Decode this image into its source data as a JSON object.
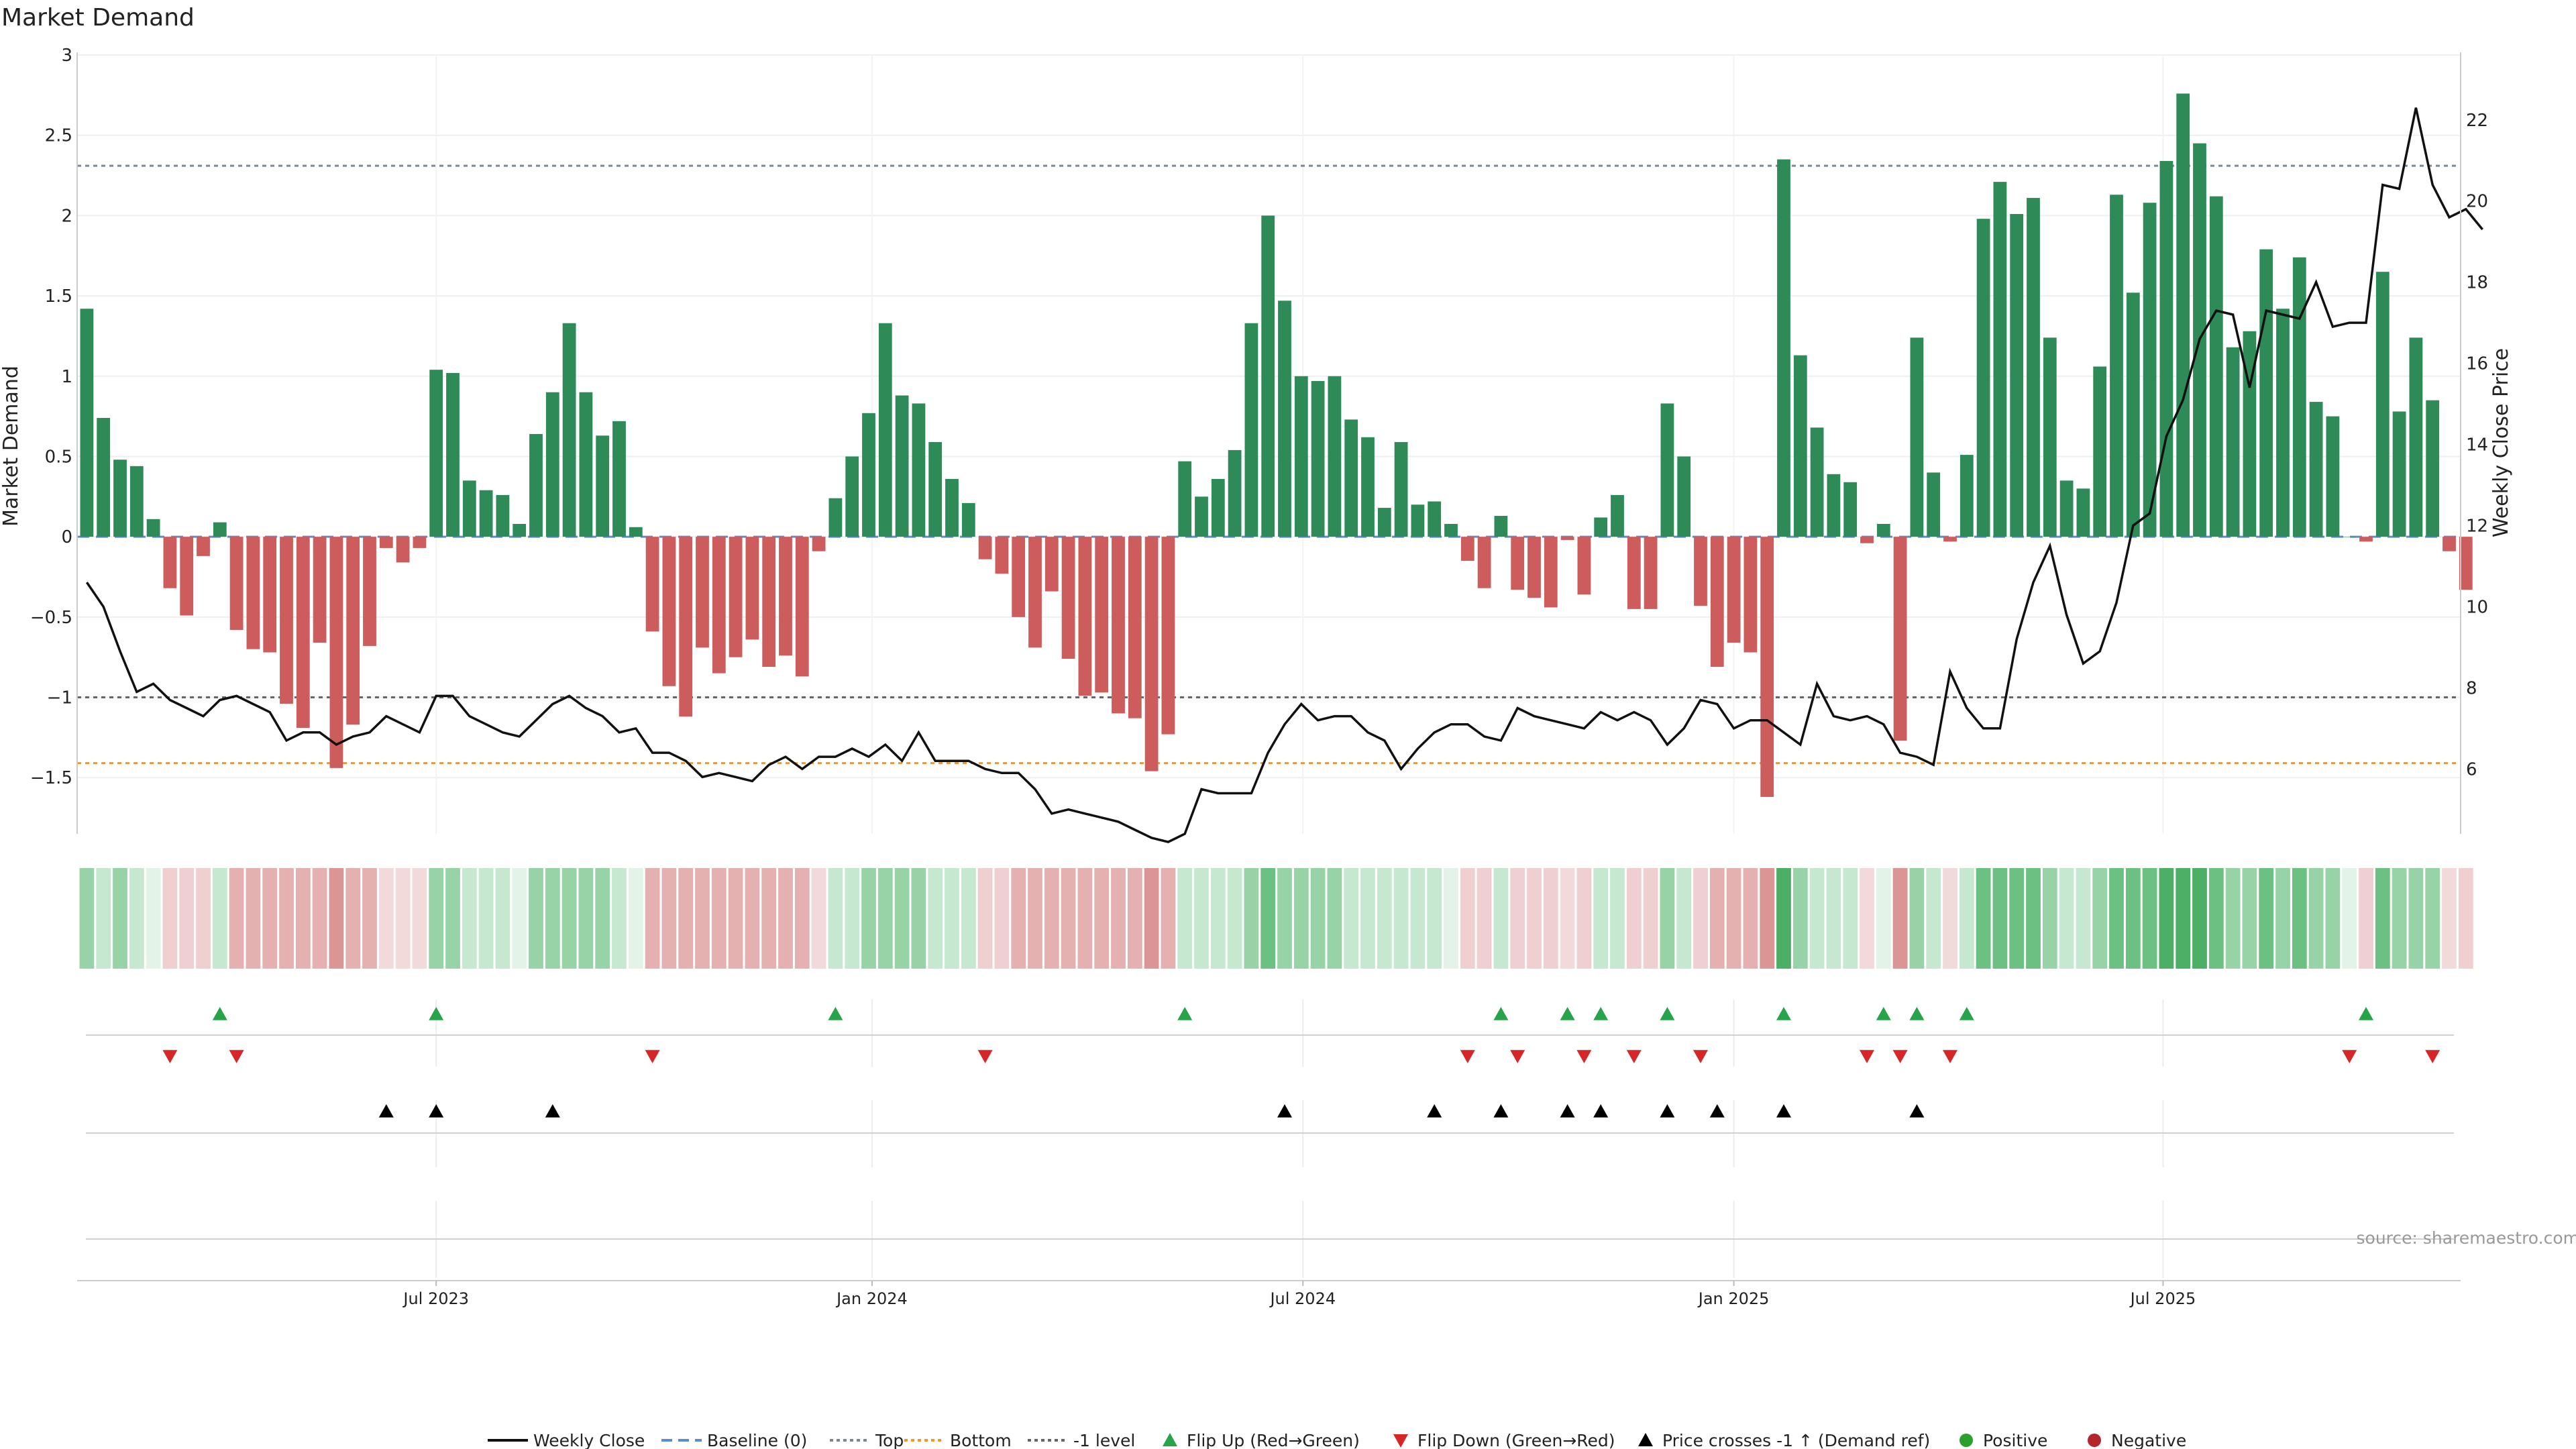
{
  "chart_data": {
    "type": "bar",
    "title": "Market Demand",
    "ylabel_left": "Market Demand",
    "ylabel_right": "Weekly Close Price",
    "ylim_left": [
      -1.85,
      3.0
    ],
    "ylim_right": [
      4.4,
      23.6
    ],
    "yticks_left": [
      "3",
      "2.5",
      "2",
      "1.5",
      "1",
      "0.5",
      "0",
      "−0.5",
      "−1",
      "−1.5"
    ],
    "yticks_left_values": [
      3,
      2.5,
      2,
      1.5,
      1,
      0.5,
      0,
      -0.5,
      -1,
      -1.5
    ],
    "yticks_right": [
      "22",
      "20",
      "18",
      "16",
      "14",
      "12",
      "10",
      "8",
      "6"
    ],
    "yticks_right_values": [
      22,
      20,
      18,
      16,
      14,
      12,
      10,
      8,
      6
    ],
    "xtick_labels": [
      "Jul 2023",
      "Jan 2024",
      "Jul 2024",
      "Jan 2025",
      "Jul 2025"
    ],
    "xtick_weeks": [
      21.5,
      47.7,
      73.6,
      99.5,
      125.3
    ],
    "n_weeks": 144,
    "reference_lines": {
      "top": 2.31,
      "bottom": -1.41,
      "minus_one": -1.0
    },
    "demand_values": [
      1.42,
      0.74,
      0.48,
      0.44,
      0.11,
      -0.32,
      -0.49,
      -0.12,
      0.09,
      -0.58,
      -0.7,
      -0.72,
      -1.04,
      -1.19,
      -0.66,
      -1.44,
      -1.17,
      -0.68,
      -0.07,
      -0.16,
      -0.07,
      1.04,
      1.02,
      0.35,
      0.29,
      0.26,
      0.08,
      0.64,
      0.9,
      1.33,
      0.9,
      0.63,
      0.72,
      0.06,
      -0.59,
      -0.93,
      -1.12,
      -0.69,
      -0.85,
      -0.75,
      -0.64,
      -0.81,
      -0.74,
      -0.87,
      -0.09,
      0.24,
      0.5,
      0.77,
      1.33,
      0.88,
      0.83,
      0.59,
      0.36,
      0.21,
      -0.14,
      -0.23,
      -0.5,
      -0.69,
      -0.34,
      -0.76,
      -0.99,
      -0.97,
      -1.1,
      -1.13,
      -1.46,
      -1.23,
      0.47,
      0.25,
      0.36,
      0.54,
      1.33,
      2.0,
      1.47,
      1.0,
      0.97,
      1.0,
      0.73,
      0.62,
      0.18,
      0.59,
      0.2,
      0.22,
      0.08,
      -0.15,
      -0.32,
      0.13,
      -0.33,
      -0.38,
      -0.44,
      -0.02,
      -0.36,
      0.12,
      0.26,
      -0.45,
      -0.45,
      0.83,
      0.5,
      -0.43,
      -0.81,
      -0.66,
      -0.72,
      -1.62,
      2.35,
      1.13,
      0.68,
      0.39,
      0.34,
      -0.04,
      0.08,
      -1.27,
      1.24,
      0.4,
      -0.03,
      0.51,
      1.98,
      2.21,
      2.01,
      2.11,
      1.24,
      0.35,
      0.3,
      1.06,
      2.13,
      1.52,
      2.08,
      2.34,
      2.76,
      2.45,
      2.12,
      1.18,
      1.28,
      1.79,
      1.42,
      1.74,
      0.84,
      0.75,
      0.0,
      -0.03,
      1.65,
      0.78,
      1.24,
      0.85,
      -0.09,
      -0.33
    ],
    "weekly_close": [
      10.6,
      10.0,
      8.9,
      7.9,
      8.1,
      7.7,
      7.5,
      7.3,
      7.7,
      7.8,
      7.6,
      7.4,
      6.7,
      6.9,
      6.9,
      6.6,
      6.8,
      6.9,
      7.3,
      7.1,
      6.9,
      7.8,
      7.8,
      7.3,
      7.1,
      6.9,
      6.8,
      7.2,
      7.6,
      7.8,
      7.5,
      7.3,
      6.9,
      7.0,
      6.4,
      6.4,
      6.2,
      5.8,
      5.9,
      5.8,
      5.7,
      6.1,
      6.3,
      6.0,
      6.3,
      6.3,
      6.5,
      6.3,
      6.6,
      6.2,
      6.9,
      6.2,
      6.2,
      6.2,
      6.0,
      5.9,
      5.9,
      5.5,
      4.9,
      5.0,
      4.9,
      4.8,
      4.7,
      4.5,
      4.3,
      4.2,
      4.4,
      5.5,
      5.4,
      5.4,
      5.4,
      6.4,
      7.1,
      7.6,
      7.2,
      7.3,
      7.3,
      6.9,
      6.7,
      6.0,
      6.5,
      6.9,
      7.1,
      7.1,
      6.8,
      6.7,
      7.5,
      7.3,
      7.2,
      7.1,
      7.0,
      7.4,
      7.2,
      7.4,
      7.2,
      6.6,
      7.0,
      7.7,
      7.6,
      7.0,
      7.2,
      7.2,
      6.9,
      6.6,
      8.1,
      7.3,
      7.2,
      7.3,
      7.1,
      6.4,
      6.3,
      6.1,
      8.4,
      7.5,
      7.0,
      7.0,
      9.2,
      10.6,
      11.5,
      9.8,
      8.6,
      8.9,
      10.1,
      12.0,
      12.3,
      14.2,
      15.1,
      16.6,
      17.3,
      17.2,
      15.4,
      17.3,
      17.2,
      17.1,
      18.0,
      16.9,
      17.0,
      17.0,
      20.4,
      20.3,
      22.3,
      20.4,
      19.6,
      19.8,
      19.3
    ],
    "heat_colors": [
      "#98d3a7",
      "#c7e8d0",
      "#98d3a7",
      "#c7e8d0",
      "#e4f3e8",
      "#efcfcf",
      "#efcfcf",
      "#efcfcf",
      "#c7e8d0",
      "#e4b0b0",
      "#e4b0b0",
      "#e4b0b0",
      "#e4b0b0",
      "#e4b0b0",
      "#e4b0b0",
      "#db9595",
      "#e4b0b0",
      "#e4b0b0",
      "#f2dada",
      "#f2dada",
      "#f2dada",
      "#98d3a7",
      "#98d3a7",
      "#c7e8d0",
      "#c7e8d0",
      "#c7e8d0",
      "#e4f3e8",
      "#98d3a7",
      "#98d3a7",
      "#98d3a7",
      "#98d3a7",
      "#98d3a7",
      "#c7e8d0",
      "#e4f3e8",
      "#e4b0b0",
      "#e4b0b0",
      "#e4b0b0",
      "#e4b0b0",
      "#e4b0b0",
      "#e4b0b0",
      "#e4b0b0",
      "#e4b0b0",
      "#e4b0b0",
      "#e4b0b0",
      "#f2dada",
      "#c7e8d0",
      "#c7e8d0",
      "#98d3a7",
      "#98d3a7",
      "#98d3a7",
      "#98d3a7",
      "#c7e8d0",
      "#c7e8d0",
      "#c7e8d0",
      "#efcfcf",
      "#efcfcf",
      "#e4b0b0",
      "#e4b0b0",
      "#e4b0b0",
      "#e4b0b0",
      "#e4b0b0",
      "#e4b0b0",
      "#e4b0b0",
      "#e4b0b0",
      "#db9595",
      "#e4b0b0",
      "#c7e8d0",
      "#c7e8d0",
      "#c7e8d0",
      "#c7e8d0",
      "#98d3a7",
      "#6cc081",
      "#98d3a7",
      "#98d3a7",
      "#98d3a7",
      "#98d3a7",
      "#c7e8d0",
      "#c7e8d0",
      "#c7e8d0",
      "#c7e8d0",
      "#c7e8d0",
      "#c7e8d0",
      "#e4f3e8",
      "#efcfcf",
      "#efcfcf",
      "#c7e8d0",
      "#efcfcf",
      "#efcfcf",
      "#efcfcf",
      "#f2dada",
      "#efcfcf",
      "#c7e8d0",
      "#c7e8d0",
      "#efcfcf",
      "#efcfcf",
      "#98d3a7",
      "#c7e8d0",
      "#efcfcf",
      "#e4b0b0",
      "#e4b0b0",
      "#e4b0b0",
      "#db9595",
      "#4caf65",
      "#98d3a7",
      "#c7e8d0",
      "#c7e8d0",
      "#c7e8d0",
      "#f2dada",
      "#e4f3e8",
      "#db9595",
      "#98d3a7",
      "#c7e8d0",
      "#f2dada",
      "#c7e8d0",
      "#6cc081",
      "#6cc081",
      "#6cc081",
      "#6cc081",
      "#98d3a7",
      "#c7e8d0",
      "#c7e8d0",
      "#98d3a7",
      "#6cc081",
      "#6cc081",
      "#6cc081",
      "#4caf65",
      "#4caf65",
      "#4caf65",
      "#6cc081",
      "#98d3a7",
      "#98d3a7",
      "#6cc081",
      "#98d3a7",
      "#6cc081",
      "#98d3a7",
      "#98d3a7",
      "#e4f3e8",
      "#efcfcf",
      "#6cc081",
      "#98d3a7",
      "#98d3a7",
      "#98d3a7",
      "#f2dada",
      "#efcfcf"
    ],
    "flip_up_weeks": [
      8,
      21,
      45,
      66,
      85,
      89,
      91,
      95,
      102,
      108,
      110,
      113,
      137
    ],
    "flip_down_weeks": [
      5,
      9,
      34,
      54,
      83,
      86,
      90,
      93,
      97,
      107,
      109,
      112,
      136,
      141
    ],
    "price_cross_weeks": [
      18,
      21,
      28,
      72,
      81,
      85,
      89,
      91,
      95,
      98,
      102,
      110
    ],
    "legend": [
      "Weekly Close",
      "Baseline (0)",
      "Top",
      "Bottom",
      "-1 level",
      "Flip Up (Red→Green)",
      "Flip Down (Green→Red)",
      "Price crosses -1 ↑ (Demand ref)",
      "Positive",
      "Negative"
    ],
    "source_note": "source: sharemaestro.com",
    "colors": {
      "positive": "#2e8b57",
      "negative": "#cd5c5c",
      "price": "#111111",
      "top": "#7b8794",
      "bottom": "#e69b3a",
      "minus_one": "#666666",
      "flip_up": "#27a34a",
      "flip_down": "#d62728",
      "cross": "#000000",
      "pos_dot": "#2ca02c",
      "neg_dot": "#b5262c"
    }
  }
}
